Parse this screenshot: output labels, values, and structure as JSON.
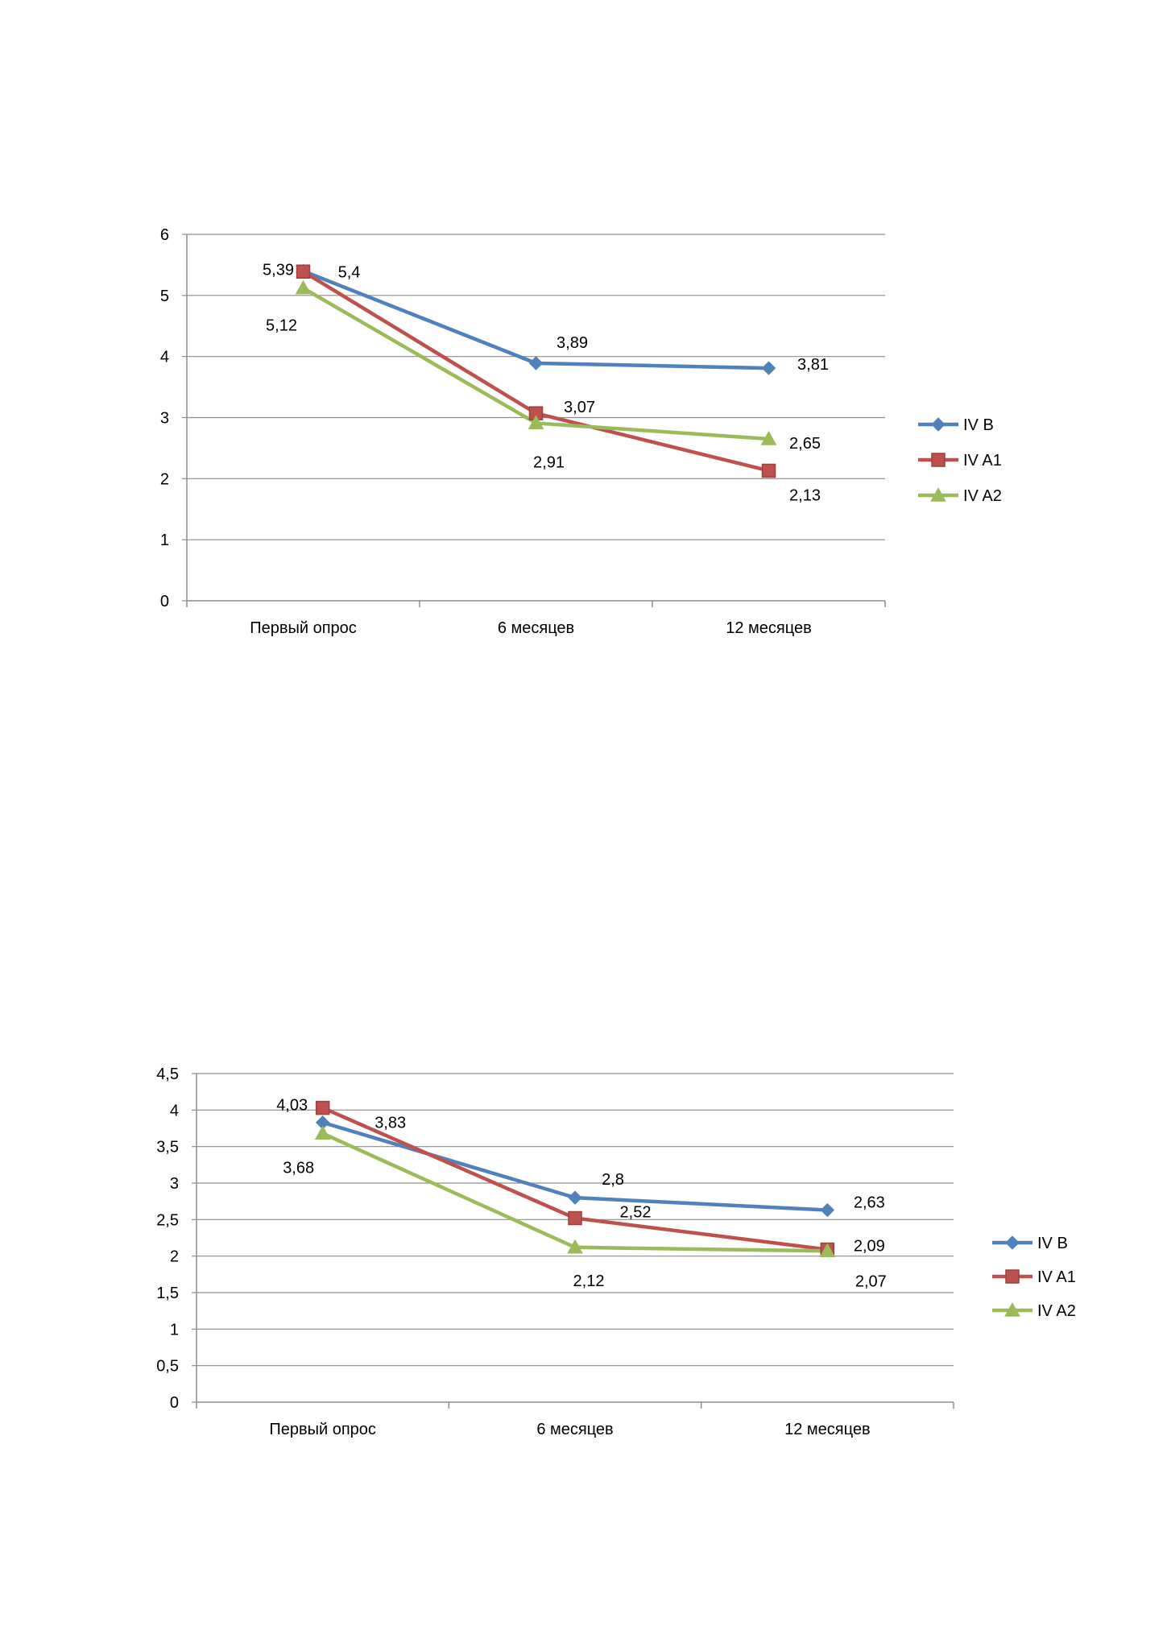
{
  "chart_data": [
    {
      "type": "line",
      "categories": [
        "Первый опрос",
        "6 месяцев",
        "12 месяцев"
      ],
      "ylim": [
        0,
        6
      ],
      "yticks": [
        "0",
        "1",
        "2",
        "3",
        "4",
        "5",
        "6"
      ],
      "grid": true,
      "legend_position": "right",
      "series": [
        {
          "name": "IV B",
          "color": "#4f81bd",
          "marker": "diamond",
          "values": [
            5.4,
            3.89,
            3.81
          ],
          "labels": [
            "5,4",
            "3,89",
            "3,81"
          ]
        },
        {
          "name": "IV A1",
          "color": "#c0504d",
          "marker": "square",
          "values": [
            5.39,
            3.07,
            2.13
          ],
          "labels": [
            "5,39",
            "3,07",
            "2,13"
          ]
        },
        {
          "name": "IV A2",
          "color": "#9bbb59",
          "marker": "triangle",
          "values": [
            5.12,
            2.91,
            2.65
          ],
          "labels": [
            "5,12",
            "2,91",
            "2,65"
          ]
        }
      ]
    },
    {
      "type": "line",
      "categories": [
        "Первый опрос",
        "6 месяцев",
        "12 месяцев"
      ],
      "ylim": [
        0,
        4.5
      ],
      "yticks": [
        "0",
        "0,5",
        "1",
        "1,5",
        "2",
        "2,5",
        "3",
        "3,5",
        "4",
        "4,5"
      ],
      "grid": true,
      "legend_position": "right",
      "series": [
        {
          "name": "IV B",
          "color": "#4f81bd",
          "marker": "diamond",
          "values": [
            3.83,
            2.8,
            2.63
          ],
          "labels": [
            "3,83",
            "2,8",
            "2,63"
          ]
        },
        {
          "name": "IV A1",
          "color": "#c0504d",
          "marker": "square",
          "values": [
            4.03,
            2.52,
            2.09
          ],
          "labels": [
            "4,03",
            "2,52",
            "2,09"
          ]
        },
        {
          "name": "IV A2",
          "color": "#9bbb59",
          "marker": "triangle",
          "values": [
            3.68,
            2.12,
            2.07
          ],
          "labels": [
            "3,68",
            "2,12",
            "2,07"
          ]
        }
      ]
    }
  ]
}
